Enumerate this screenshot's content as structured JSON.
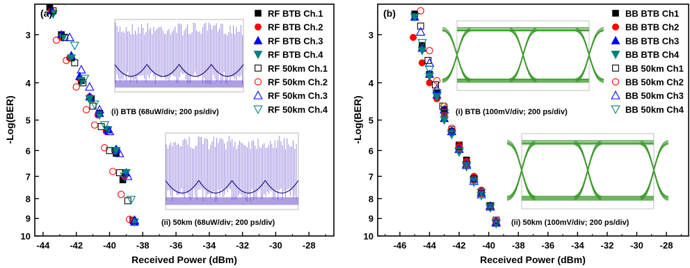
{
  "colors": {
    "black": "#000000",
    "red": "#ff0000",
    "blue": "#0000ff",
    "teal": "#008080",
    "rf_eye": "#6a4fd0",
    "bb_eye": "#3a9a2a"
  },
  "chart_data": [
    {
      "type": "scatter",
      "panel_label": "(a)",
      "xlabel": "Received Power (dBm)",
      "ylabel": "-Log(BER)",
      "xlim": [
        -44.5,
        -26.5
      ],
      "xticks": [
        "-44",
        "-42",
        "-40",
        "-38",
        "-36",
        "-34",
        "-32",
        "-30",
        "-28"
      ],
      "yticks": [
        "3",
        "4",
        "5",
        "6",
        "7",
        "8",
        "9",
        "10"
      ],
      "y_scale": "log(-log(BER))",
      "ylim": [
        2.5,
        10
      ],
      "legend_position": "top-right",
      "insets": [
        {
          "caption": "(i) BTB (68uW/div; 200 ps/div)",
          "style": "rf"
        },
        {
          "caption": "(ii) 50km (68uW/div; 200 ps/div)",
          "style": "rf"
        }
      ],
      "series": [
        {
          "name": "RF BTB Ch.1",
          "marker": "square",
          "filled": true,
          "color": "black",
          "x": [
            -43.6,
            -42.9,
            -42.3,
            -41.7,
            -41.1,
            -40.6,
            -40.1,
            -39.6,
            -39.2,
            -38.6
          ],
          "y": [
            2.55,
            3.0,
            3.45,
            3.95,
            4.4,
            4.8,
            5.3,
            6.1,
            7.15,
            9.1
          ]
        },
        {
          "name": "RF BTB Ch.2",
          "marker": "circle",
          "filled": true,
          "color": "red",
          "x": [
            -43.5,
            -42.9,
            -42.4,
            -41.8,
            -41.2,
            -40.7,
            -40.2,
            -39.7,
            -39.1,
            -38.6
          ],
          "y": [
            2.6,
            3.05,
            3.45,
            3.9,
            4.35,
            4.85,
            5.35,
            6.0,
            7.0,
            9.1
          ]
        },
        {
          "name": "RF BTB Ch.3",
          "marker": "triangle-up",
          "filled": true,
          "color": "blue",
          "x": [
            -43.5,
            -42.9,
            -42.3,
            -41.8,
            -41.2,
            -40.6,
            -40.1,
            -39.6,
            -39.0,
            -38.5
          ],
          "y": [
            2.6,
            3.0,
            3.4,
            3.85,
            4.35,
            4.8,
            5.3,
            5.95,
            6.85,
            9.2
          ]
        },
        {
          "name": "RF BTB Ch.4",
          "marker": "triangle-down",
          "filled": true,
          "color": "teal",
          "x": [
            -43.4,
            -42.8,
            -42.3,
            -41.7,
            -41.2,
            -40.6,
            -40.1,
            -39.6,
            -39.0,
            -38.5
          ],
          "y": [
            2.65,
            3.05,
            3.45,
            3.95,
            4.4,
            4.85,
            5.3,
            6.0,
            6.85,
            9.2
          ]
        },
        {
          "name": "RF 50km Ch.1",
          "marker": "square",
          "filled": false,
          "color": "black",
          "x": [
            -43.4,
            -42.7,
            -42.1,
            -41.6,
            -41.0,
            -40.5,
            -40.0,
            -39.4,
            -38.9
          ],
          "y": [
            2.6,
            3.05,
            3.55,
            4.0,
            4.6,
            5.2,
            6.0,
            6.85,
            8.1
          ]
        },
        {
          "name": "RF 50km Ch.2",
          "marker": "circle",
          "filled": false,
          "color": "red",
          "x": [
            -43.2,
            -42.6,
            -42.0,
            -41.4,
            -40.9,
            -40.3,
            -39.8,
            -39.3,
            -38.8
          ],
          "y": [
            3.1,
            3.5,
            4.1,
            4.7,
            5.15,
            5.9,
            6.8,
            7.8,
            9.05
          ]
        },
        {
          "name": "RF 50km Ch.3",
          "marker": "triangle-up",
          "filled": false,
          "color": "blue",
          "x": [
            -43.0,
            -42.4,
            -41.7,
            -41.2,
            -40.6,
            -40.0,
            -39.4,
            -38.9,
            -38.5
          ],
          "y": [
            2.4,
            3.05,
            3.7,
            4.1,
            4.7,
            5.35,
            6.1,
            7.0,
            9.1
          ]
        },
        {
          "name": "RF 50km Ch.4",
          "marker": "triangle-down",
          "filled": false,
          "color": "teal",
          "x": [
            -42.7,
            -42.1,
            -41.5,
            -40.9,
            -40.3,
            -39.7,
            -39.1,
            -38.7
          ],
          "y": [
            2.45,
            3.2,
            3.9,
            4.55,
            5.15,
            6.0,
            7.0,
            8.05
          ]
        }
      ]
    },
    {
      "type": "scatter",
      "panel_label": "(b)",
      "xlabel": "Received Power (dBm)",
      "ylabel": "-Log(BER)",
      "xlim": [
        -47.5,
        -26.5
      ],
      "xticks": [
        "-46",
        "-44",
        "-42",
        "-40",
        "-38",
        "-36",
        "-34",
        "-32",
        "-30",
        "-28"
      ],
      "yticks": [
        "3",
        "4",
        "5",
        "6",
        "7",
        "8",
        "9",
        "10"
      ],
      "y_scale": "log(-log(BER))",
      "ylim": [
        2.5,
        10
      ],
      "legend_position": "top-right",
      "insets": [
        {
          "caption": "(i) BTB (100mV/div; 200 ps/div)",
          "style": "bb"
        },
        {
          "caption": "(ii) 50km (100mV/div; 200 ps/div)",
          "style": "bb"
        }
      ],
      "series": [
        {
          "name": "BB BTB Ch1",
          "marker": "square",
          "filled": true,
          "color": "black",
          "x": [
            -45.0,
            -44.5,
            -44.0,
            -43.5,
            -43.0,
            -42.5,
            -42.0,
            -41.5,
            -41.0,
            -40.5,
            -39.9,
            -39.5
          ],
          "y": [
            2.65,
            3.2,
            3.8,
            4.25,
            4.7,
            5.35,
            5.8,
            6.35,
            7.1,
            7.7,
            8.35,
            9.2
          ]
        },
        {
          "name": "BB BTB Ch2",
          "marker": "circle",
          "filled": true,
          "color": "red",
          "x": [
            -45.1,
            -44.5,
            -44.0,
            -43.5,
            -43.0,
            -42.5,
            -42.0,
            -41.5,
            -41.0,
            -40.5,
            -39.9,
            -39.5
          ],
          "y": [
            3.05,
            3.55,
            4.0,
            4.4,
            4.85,
            5.4,
            5.8,
            6.4,
            7.0,
            7.6,
            8.35,
            9.15
          ]
        },
        {
          "name": "BB BTB Ch3",
          "marker": "triangle-up",
          "filled": true,
          "color": "blue",
          "x": [
            -45.0,
            -44.5,
            -44.0,
            -43.5,
            -43.0,
            -42.5,
            -42.0,
            -41.5,
            -41.0,
            -40.5,
            -39.9,
            -39.5
          ],
          "y": [
            2.7,
            3.25,
            3.8,
            4.3,
            4.95,
            5.35,
            5.95,
            6.5,
            7.1,
            7.7,
            8.35,
            9.25
          ]
        },
        {
          "name": "BB BTB Ch4",
          "marker": "triangle-down",
          "filled": true,
          "color": "teal",
          "x": [
            -45.0,
            -44.5,
            -44.0,
            -43.5,
            -43.0,
            -42.5,
            -42.0,
            -41.5,
            -41.0,
            -40.5,
            -39.9,
            -39.5
          ],
          "y": [
            2.7,
            3.3,
            3.85,
            4.35,
            5.0,
            5.4,
            6.0,
            6.55,
            7.15,
            7.7,
            8.35,
            9.3
          ]
        },
        {
          "name": "BB 50km Ch1",
          "marker": "square",
          "filled": false,
          "color": "black",
          "x": [
            -45.1,
            -44.6,
            -44.1,
            -43.6,
            -43.1,
            -42.5,
            -42.0,
            -41.5,
            -41.0,
            -40.5,
            -39.9,
            -39.5
          ],
          "y": [
            2.45,
            2.85,
            3.5,
            4.05,
            4.6,
            5.3,
            5.85,
            6.5,
            7.1,
            7.75,
            8.35,
            9.1
          ]
        },
        {
          "name": "BB 50km Ch2",
          "marker": "circle",
          "filled": false,
          "color": "red",
          "x": [
            -44.6,
            -44.0,
            -43.5,
            -43.0,
            -42.5,
            -42.0,
            -41.5,
            -41.0,
            -40.5,
            -39.9,
            -39.5
          ],
          "y": [
            2.6,
            3.3,
            3.95,
            4.6,
            5.25,
            5.9,
            6.5,
            7.15,
            7.75,
            8.4,
            9.2
          ]
        },
        {
          "name": "BB 50km Ch3",
          "marker": "triangle-up",
          "filled": false,
          "color": "blue",
          "x": [
            -44.6,
            -44.0,
            -43.5,
            -43.0,
            -42.5,
            -42.0,
            -41.5,
            -41.0,
            -40.5,
            -39.9,
            -39.5
          ],
          "y": [
            2.95,
            3.55,
            4.15,
            4.7,
            5.35,
            5.95,
            6.55,
            7.2,
            7.8,
            8.4,
            9.2
          ]
        },
        {
          "name": "BB 50km Ch4",
          "marker": "triangle-down",
          "filled": false,
          "color": "teal",
          "x": [
            -44.5,
            -44.0,
            -43.5,
            -43.0,
            -42.5,
            -42.0,
            -41.5,
            -41.0,
            -40.5,
            -39.9,
            -39.5
          ],
          "y": [
            3.15,
            3.7,
            4.25,
            4.8,
            5.45,
            6.05,
            6.6,
            7.25,
            7.85,
            8.45,
            9.25
          ]
        }
      ]
    }
  ]
}
